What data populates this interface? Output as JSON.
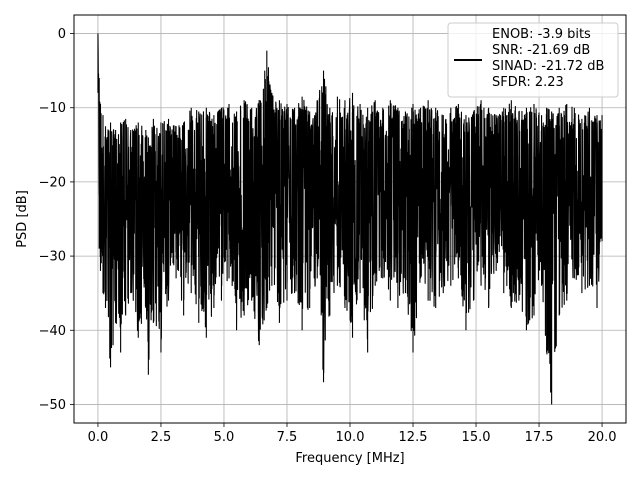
{
  "chart_data": {
    "type": "line",
    "xlabel": "Frequency [MHz]",
    "ylabel": "PSD [dB]",
    "xlim": [
      -0.95,
      20.95
    ],
    "ylim": [
      -52.5,
      2.5
    ],
    "xticks": [
      0.0,
      2.5,
      5.0,
      7.5,
      10.0,
      12.5,
      15.0,
      17.5,
      20.0
    ],
    "xtick_labels": [
      "0.0",
      "2.5",
      "5.0",
      "7.5",
      "10.0",
      "12.5",
      "15.0",
      "17.5",
      "20.0"
    ],
    "yticks": [
      0,
      -10,
      -20,
      -30,
      -40,
      -50
    ],
    "ytick_labels": [
      "0",
      "−10",
      "−20",
      "−30",
      "−40",
      "−50"
    ],
    "grid": true,
    "legend_placement": "top-right",
    "series_color": "#000000",
    "legend": {
      "lines": [
        "ENOB: -3.9 bits",
        "SNR: -21.69 dB",
        "SINAD: -21.72 dB",
        "SFDR: 2.23"
      ]
    },
    "series": [
      {
        "x": [
          0.0,
          0.05,
          0.1,
          0.2,
          0.3,
          0.5,
          0.7,
          0.9,
          1.1,
          1.3,
          1.6,
          1.9,
          2.0,
          2.2,
          2.5,
          2.8,
          3.1,
          3.4,
          3.7,
          4.0,
          4.3,
          4.6,
          4.9,
          5.2,
          5.5,
          5.8,
          6.1,
          6.4,
          6.7,
          6.9,
          7.2,
          7.5,
          7.8,
          8.1,
          8.4,
          8.7,
          8.95,
          9.2,
          9.5,
          9.8,
          10.1,
          10.4,
          10.7,
          11.0,
          11.3,
          11.6,
          11.9,
          12.2,
          12.5,
          12.8,
          13.1,
          13.4,
          13.7,
          14.0,
          14.3,
          14.6,
          14.9,
          15.2,
          15.5,
          15.8,
          16.1,
          16.4,
          16.7,
          17.0,
          17.3,
          17.6,
          17.8,
          18.0,
          18.3,
          18.6,
          18.9,
          19.2,
          19.5,
          19.8,
          20.0
        ],
        "upper": [
          0.0,
          -6.0,
          -9.5,
          -11.0,
          -12.5,
          -12.0,
          -13.0,
          -12.0,
          -11.5,
          -13.0,
          -12.0,
          -13.0,
          -14.0,
          -11.5,
          -12.0,
          -11.5,
          -12.5,
          -12.0,
          -10.0,
          -10.5,
          -10.0,
          -11.0,
          -10.0,
          -9.5,
          -10.5,
          -9.0,
          -10.0,
          -9.0,
          -2.3,
          -8.0,
          -9.0,
          -9.5,
          -10.0,
          -8.5,
          -10.5,
          -9.0,
          -5.0,
          -10.0,
          -8.5,
          -9.0,
          -8.0,
          -9.5,
          -10.0,
          -9.0,
          -10.0,
          -9.0,
          -10.0,
          -10.5,
          -9.5,
          -10.0,
          -9.0,
          -10.0,
          -11.0,
          -10.0,
          -9.5,
          -11.0,
          -10.5,
          -9.0,
          -10.0,
          -11.0,
          -10.0,
          -9.0,
          -10.5,
          -10.0,
          -9.5,
          -11.0,
          -10.0,
          -10.5,
          -10.0,
          -9.5,
          -10.0,
          -11.5,
          -10.0,
          -11.0,
          -11.0
        ],
        "lower": [
          -8.0,
          -29.0,
          -32.0,
          -35.0,
          -37.0,
          -45.0,
          -39.0,
          -43.0,
          -38.0,
          -35.0,
          -41.0,
          -37.0,
          -46.0,
          -39.0,
          -43.0,
          -36.0,
          -33.0,
          -38.0,
          -35.0,
          -39.0,
          -41.0,
          -37.0,
          -36.0,
          -33.0,
          -40.0,
          -38.0,
          -36.0,
          -42.0,
          -37.0,
          -34.0,
          -39.0,
          -36.0,
          -35.0,
          -40.0,
          -37.0,
          -33.0,
          -47.0,
          -38.0,
          -34.0,
          -37.0,
          -41.0,
          -35.0,
          -43.0,
          -34.0,
          -33.0,
          -36.0,
          -37.0,
          -35.0,
          -43.0,
          -33.0,
          -36.0,
          -37.0,
          -35.0,
          -34.0,
          -33.0,
          -40.0,
          -36.0,
          -34.0,
          -37.0,
          -32.0,
          -35.0,
          -37.0,
          -36.0,
          -40.0,
          -38.0,
          -34.0,
          -43.0,
          -50.0,
          -38.0,
          -36.0,
          -33.0,
          -35.0,
          -34.0,
          -37.0,
          -28.0
        ]
      }
    ]
  }
}
